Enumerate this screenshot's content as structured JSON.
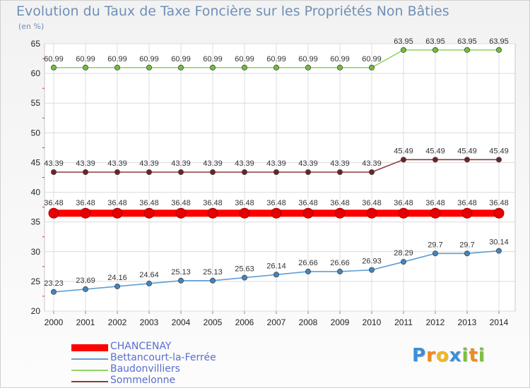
{
  "chart_data": {
    "type": "line",
    "title": "Evolution du Taux de Taxe Foncière sur les Propriétés Non Bâties",
    "subtitle": "(en %)",
    "ylim": [
      20,
      65
    ],
    "yticks": [
      20,
      25,
      30,
      35,
      40,
      45,
      50,
      55,
      60,
      65
    ],
    "categories": [
      "2000",
      "2001",
      "2002",
      "2003",
      "2004",
      "2005",
      "2006",
      "2007",
      "2008",
      "2009",
      "2010",
      "2011",
      "2012",
      "2013",
      "2014"
    ],
    "series": [
      {
        "name": "CHANCENAY",
        "color": "#ff0000",
        "emphasis": true,
        "values": [
          36.48,
          36.48,
          36.48,
          36.48,
          36.48,
          36.48,
          36.48,
          36.48,
          36.48,
          36.48,
          36.48,
          36.48,
          36.48,
          36.48,
          36.48
        ],
        "labels": [
          "36.48",
          "36.48",
          "36.48",
          "36.48",
          "36.48",
          "36.48",
          "36.48",
          "36.48",
          "36.48",
          "36.48",
          "36.48",
          "36.48",
          "36.48",
          "36.48",
          "36.48"
        ]
      },
      {
        "name": "Bettancourt-la-Ferrée",
        "color": "#5f9ed4",
        "marker_color": "#3f86c4",
        "emphasis": false,
        "values": [
          23.23,
          23.69,
          24.16,
          24.64,
          25.13,
          25.13,
          25.63,
          26.14,
          26.66,
          26.66,
          26.93,
          28.29,
          29.7,
          29.7,
          30.14
        ],
        "labels": [
          "23.23",
          "23.69",
          "24.16",
          "24.64",
          "25.13",
          "25.13",
          "25.63",
          "26.14",
          "26.66",
          "26.66",
          "26.93",
          "28.29",
          "29.7",
          "29.7",
          "30.14"
        ]
      },
      {
        "name": "Baudonvilliers",
        "color": "#96d46a",
        "marker_color": "#6cc23a",
        "emphasis": false,
        "values": [
          60.99,
          60.99,
          60.99,
          60.99,
          60.99,
          60.99,
          60.99,
          60.99,
          60.99,
          60.99,
          60.99,
          63.95,
          63.95,
          63.95,
          63.95
        ],
        "labels": [
          "60.99",
          "60.99",
          "60.99",
          "60.99",
          "60.99",
          "60.99",
          "60.99",
          "60.99",
          "60.99",
          "60.99",
          "60.99",
          "63.95",
          "63.95",
          "63.95",
          "63.95"
        ]
      },
      {
        "name": "Sommelonne",
        "color": "#8b3a3a",
        "marker_color": "#6e2222",
        "emphasis": false,
        "values": [
          43.39,
          43.39,
          43.39,
          43.39,
          43.39,
          43.39,
          43.39,
          43.39,
          43.39,
          43.39,
          43.39,
          45.49,
          45.49,
          45.49,
          45.49
        ],
        "labels": [
          "43.39",
          "43.39",
          "43.39",
          "43.39",
          "43.39",
          "43.39",
          "43.39",
          "43.39",
          "43.39",
          "43.39",
          "43.39",
          "45.49",
          "45.49",
          "45.49",
          "45.49"
        ]
      }
    ],
    "grid": true,
    "legend": "bottom-left"
  },
  "logo": {
    "letters": [
      "P",
      "r",
      "o",
      "x",
      "i",
      "t",
      "i"
    ],
    "colors": [
      "#3a8fd6",
      "#f08a1c",
      "#f0b81c",
      "#3a8fd6",
      "#7cc23a",
      "#f08a1c",
      "#7cc23a"
    ]
  }
}
